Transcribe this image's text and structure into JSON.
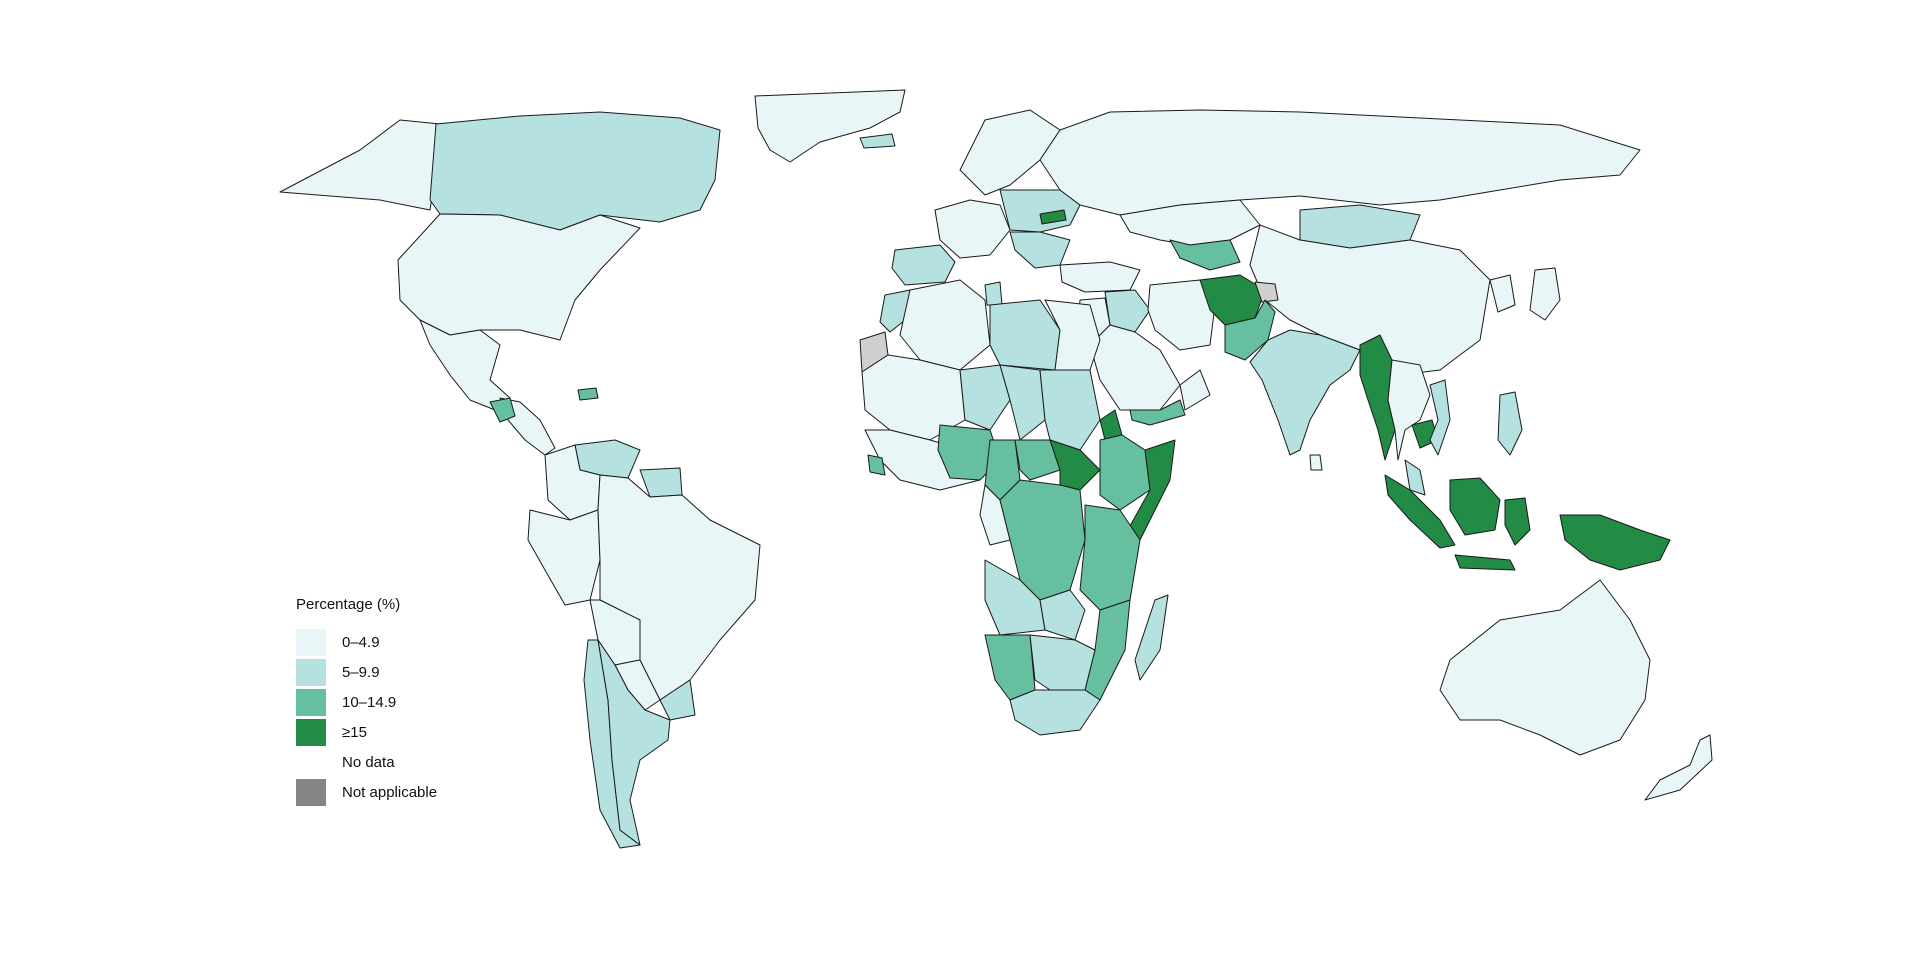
{
  "legend": {
    "title": "Percentage (%)",
    "items": [
      {
        "key": "c0",
        "label": "0–4.9",
        "color": "#e9f6f7"
      },
      {
        "key": "c1",
        "label": "5–9.9",
        "color": "#b5e1e1"
      },
      {
        "key": "c2",
        "label": "10–14.9",
        "color": "#66bf9f"
      },
      {
        "key": "c3",
        "label": "≥15",
        "color": "#228b45"
      },
      {
        "key": "nodata",
        "label": "No data",
        "color": "#ffffff"
      },
      {
        "key": "na",
        "label": "Not applicable",
        "color": "#858585"
      }
    ]
  },
  "map": {
    "projection": "world choropleth",
    "no_data_fill": "#cfcfcf",
    "regions": [
      {
        "id": "greenland",
        "class": "c0"
      },
      {
        "id": "alaska",
        "class": "c0"
      },
      {
        "id": "canada",
        "class": "c1"
      },
      {
        "id": "usa",
        "class": "c0"
      },
      {
        "id": "mexico",
        "class": "c0"
      },
      {
        "id": "central-america",
        "class": "c0"
      },
      {
        "id": "guatemala",
        "class": "c2"
      },
      {
        "id": "haiti",
        "class": "c2"
      },
      {
        "id": "venezuela",
        "class": "c1"
      },
      {
        "id": "guyana",
        "class": "c1"
      },
      {
        "id": "colombia",
        "class": "c0"
      },
      {
        "id": "brazil",
        "class": "c0"
      },
      {
        "id": "peru-ecuador",
        "class": "c0"
      },
      {
        "id": "bolivia",
        "class": "c0"
      },
      {
        "id": "paraguay",
        "class": "c0"
      },
      {
        "id": "argentina",
        "class": "c1"
      },
      {
        "id": "chile",
        "class": "c1"
      },
      {
        "id": "uruguay",
        "class": "c1"
      },
      {
        "id": "iceland",
        "class": "c1"
      },
      {
        "id": "western-europe",
        "class": "c0"
      },
      {
        "id": "spain-portugal",
        "class": "c1"
      },
      {
        "id": "central-europe",
        "class": "c1"
      },
      {
        "id": "slovakia",
        "class": "c3"
      },
      {
        "id": "balkans",
        "class": "c1"
      },
      {
        "id": "scandinavia",
        "class": "c0"
      },
      {
        "id": "russia",
        "class": "c0"
      },
      {
        "id": "kazakhstan",
        "class": "c0"
      },
      {
        "id": "mongolia",
        "class": "c1"
      },
      {
        "id": "china",
        "class": "c0"
      },
      {
        "id": "uzbekistan-tajikistan",
        "class": "c2"
      },
      {
        "id": "turkey",
        "class": "c0"
      },
      {
        "id": "middle-east",
        "class": "c0"
      },
      {
        "id": "iraq-syria",
        "class": "c1"
      },
      {
        "id": "saudi-arabia",
        "class": "c0"
      },
      {
        "id": "yemen",
        "class": "c2"
      },
      {
        "id": "oman",
        "class": "c0"
      },
      {
        "id": "iran",
        "class": "c0"
      },
      {
        "id": "afghanistan",
        "class": "c3"
      },
      {
        "id": "pakistan",
        "class": "c2"
      },
      {
        "id": "kashmir",
        "class": "nodata"
      },
      {
        "id": "india",
        "class": "c1"
      },
      {
        "id": "sri-lanka",
        "class": "c0"
      },
      {
        "id": "myanmar",
        "class": "c3"
      },
      {
        "id": "thailand-laos",
        "class": "c0"
      },
      {
        "id": "cambodia",
        "class": "c3"
      },
      {
        "id": "vietnam",
        "class": "c1"
      },
      {
        "id": "malaysia",
        "class": "c1"
      },
      {
        "id": "philippines",
        "class": "c1"
      },
      {
        "id": "indonesia-sumatra",
        "class": "c3"
      },
      {
        "id": "indonesia-java",
        "class": "c3"
      },
      {
        "id": "borneo-indonesia",
        "class": "c3"
      },
      {
        "id": "sulawesi",
        "class": "c3"
      },
      {
        "id": "new-guinea",
        "class": "c3"
      },
      {
        "id": "japan",
        "class": "c0"
      },
      {
        "id": "korea",
        "class": "c0"
      },
      {
        "id": "australia",
        "class": "c0"
      },
      {
        "id": "new-zealand",
        "class": "c0"
      },
      {
        "id": "western-sahara",
        "class": "nodata"
      },
      {
        "id": "morocco",
        "class": "c1"
      },
      {
        "id": "algeria",
        "class": "c0"
      },
      {
        "id": "tunisia",
        "class": "c1"
      },
      {
        "id": "libya",
        "class": "c1"
      },
      {
        "id": "egypt",
        "class": "c0"
      },
      {
        "id": "mauritania-mali",
        "class": "c0"
      },
      {
        "id": "niger",
        "class": "c1"
      },
      {
        "id": "chad",
        "class": "c1"
      },
      {
        "id": "sudan",
        "class": "c1"
      },
      {
        "id": "west-africa-coast",
        "class": "c0"
      },
      {
        "id": "sierra-leone",
        "class": "c2"
      },
      {
        "id": "nigeria",
        "class": "c2"
      },
      {
        "id": "cameroon",
        "class": "c2"
      },
      {
        "id": "central-african-republic",
        "class": "c2"
      },
      {
        "id": "south-sudan",
        "class": "c3"
      },
      {
        "id": "ethiopia",
        "class": "c2"
      },
      {
        "id": "eritrea",
        "class": "c3"
      },
      {
        "id": "somalia",
        "class": "c3"
      },
      {
        "id": "gabon-congo",
        "class": "c0"
      },
      {
        "id": "drc",
        "class": "c2"
      },
      {
        "id": "kenya-tanzania",
        "class": "c2"
      },
      {
        "id": "angola",
        "class": "c1"
      },
      {
        "id": "zambia",
        "class": "c1"
      },
      {
        "id": "mozambique",
        "class": "c2"
      },
      {
        "id": "namibia",
        "class": "c2"
      },
      {
        "id": "botswana-zimbabwe",
        "class": "c1"
      },
      {
        "id": "south-africa",
        "class": "c1"
      },
      {
        "id": "madagascar",
        "class": "c1"
      }
    ]
  }
}
